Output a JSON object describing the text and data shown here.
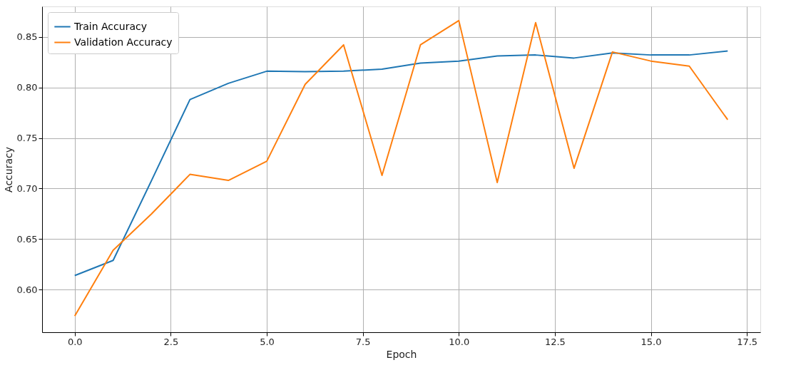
{
  "chart_data": {
    "type": "line",
    "xlabel": "Epoch",
    "ylabel": "Accuracy",
    "x": [
      0,
      1,
      2,
      3,
      4,
      5,
      6,
      7,
      8,
      9,
      10,
      11,
      12,
      13,
      14,
      15,
      16,
      17
    ],
    "series": [
      {
        "name": "Train Accuracy",
        "color": "#1f77b4",
        "values": [
          0.614,
          0.629,
          0.708,
          0.788,
          0.804,
          0.816,
          0.8155,
          0.816,
          0.818,
          0.824,
          0.826,
          0.831,
          0.832,
          0.829,
          0.834,
          0.832,
          0.832,
          0.836
        ]
      },
      {
        "name": "Validation Accuracy",
        "color": "#ff7f0e",
        "values": [
          0.574,
          0.639,
          0.675,
          0.714,
          0.708,
          0.727,
          0.803,
          0.842,
          0.713,
          0.842,
          0.866,
          0.706,
          0.864,
          0.72,
          0.835,
          0.826,
          0.821,
          0.768
        ]
      }
    ],
    "xlim": [
      -0.85,
      17.85
    ],
    "ylim": [
      0.558,
      0.88
    ],
    "xticks": [
      {
        "value": 0,
        "label": "0.0"
      },
      {
        "value": 2.5,
        "label": "2.5"
      },
      {
        "value": 5,
        "label": "5.0"
      },
      {
        "value": 7.5,
        "label": "7.5"
      },
      {
        "value": 10,
        "label": "10.0"
      },
      {
        "value": 12.5,
        "label": "12.5"
      },
      {
        "value": 15,
        "label": "15.0"
      },
      {
        "value": 17.5,
        "label": "17.5"
      }
    ],
    "yticks": [
      {
        "value": 0.6,
        "label": "0.60"
      },
      {
        "value": 0.65,
        "label": "0.65"
      },
      {
        "value": 0.7,
        "label": "0.70"
      },
      {
        "value": 0.75,
        "label": "0.75"
      },
      {
        "value": 0.8,
        "label": "0.80"
      },
      {
        "value": 0.85,
        "label": "0.85"
      }
    ],
    "grid": true,
    "legend": "top left",
    "line_style": "solid",
    "marker": "none"
  }
}
